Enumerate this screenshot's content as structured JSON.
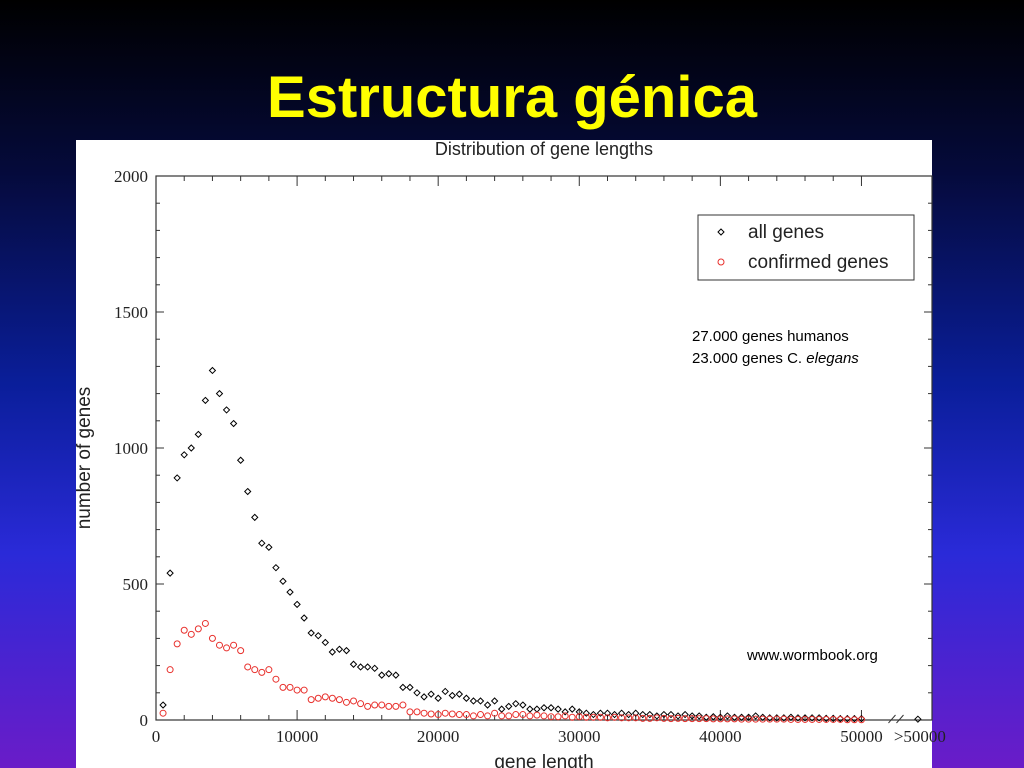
{
  "slide": {
    "title": "Estructura génica"
  },
  "annotations": {
    "line1": "27.000 genes humanos",
    "line2_prefix": "23.000 genes C. ",
    "line2_italic": "elegans",
    "source": "www.wormbook.org"
  },
  "chart_data": {
    "type": "scatter",
    "title": "Distribution of gene lengths",
    "xlabel": "gene length",
    "ylabel": "number of genes",
    "xlim": [
      0,
      55000
    ],
    "ylim": [
      0,
      2000
    ],
    "xticks": [
      0,
      10000,
      20000,
      30000,
      40000,
      50000
    ],
    "xtick_labels": [
      "0",
      "10000",
      "20000",
      "30000",
      "40000",
      "50000"
    ],
    "extra_xtick_label": ">50000",
    "yticks": [
      0,
      500,
      1000,
      1500,
      2000
    ],
    "ytick_labels": [
      "0",
      "500",
      "1000",
      "1500",
      "2000"
    ],
    "axis_break": true,
    "legend_position": "top-right",
    "series": [
      {
        "name": "all genes",
        "marker": "diamond",
        "color": "#000000",
        "points": [
          [
            500,
            55
          ],
          [
            1000,
            540
          ],
          [
            1500,
            890
          ],
          [
            2000,
            975
          ],
          [
            2500,
            1000
          ],
          [
            3000,
            1050
          ],
          [
            3500,
            1175
          ],
          [
            4000,
            1285
          ],
          [
            4500,
            1200
          ],
          [
            5000,
            1140
          ],
          [
            5500,
            1090
          ],
          [
            6000,
            955
          ],
          [
            6500,
            840
          ],
          [
            7000,
            745
          ],
          [
            7500,
            650
          ],
          [
            8000,
            635
          ],
          [
            8500,
            560
          ],
          [
            9000,
            510
          ],
          [
            9500,
            470
          ],
          [
            10000,
            425
          ],
          [
            10500,
            375
          ],
          [
            11000,
            320
          ],
          [
            11500,
            310
          ],
          [
            12000,
            285
          ],
          [
            12500,
            250
          ],
          [
            13000,
            260
          ],
          [
            13500,
            255
          ],
          [
            14000,
            205
          ],
          [
            14500,
            195
          ],
          [
            15000,
            195
          ],
          [
            15500,
            190
          ],
          [
            16000,
            165
          ],
          [
            16500,
            170
          ],
          [
            17000,
            165
          ],
          [
            17500,
            120
          ],
          [
            18000,
            120
          ],
          [
            18500,
            100
          ],
          [
            19000,
            85
          ],
          [
            19500,
            95
          ],
          [
            20000,
            80
          ],
          [
            20500,
            105
          ],
          [
            21000,
            90
          ],
          [
            21500,
            95
          ],
          [
            22000,
            80
          ],
          [
            22500,
            70
          ],
          [
            23000,
            70
          ],
          [
            23500,
            55
          ],
          [
            24000,
            70
          ],
          [
            24500,
            40
          ],
          [
            25000,
            50
          ],
          [
            25500,
            60
          ],
          [
            26000,
            55
          ],
          [
            26500,
            40
          ],
          [
            27000,
            40
          ],
          [
            27500,
            45
          ],
          [
            28000,
            45
          ],
          [
            28500,
            40
          ],
          [
            29000,
            30
          ],
          [
            29500,
            40
          ],
          [
            30000,
            30
          ],
          [
            30500,
            25
          ],
          [
            31000,
            20
          ],
          [
            31500,
            25
          ],
          [
            32000,
            25
          ],
          [
            32500,
            20
          ],
          [
            33000,
            25
          ],
          [
            33500,
            20
          ],
          [
            34000,
            25
          ],
          [
            34500,
            20
          ],
          [
            35000,
            20
          ],
          [
            35500,
            15
          ],
          [
            36000,
            20
          ],
          [
            36500,
            20
          ],
          [
            37000,
            15
          ],
          [
            37500,
            20
          ],
          [
            38000,
            15
          ],
          [
            38500,
            15
          ],
          [
            39000,
            10
          ],
          [
            39500,
            12
          ],
          [
            40000,
            10
          ],
          [
            40500,
            15
          ],
          [
            41000,
            10
          ],
          [
            41500,
            10
          ],
          [
            42000,
            10
          ],
          [
            42500,
            15
          ],
          [
            43000,
            10
          ],
          [
            43500,
            8
          ],
          [
            44000,
            8
          ],
          [
            44500,
            8
          ],
          [
            45000,
            10
          ],
          [
            45500,
            8
          ],
          [
            46000,
            8
          ],
          [
            46500,
            8
          ],
          [
            47000,
            8
          ],
          [
            47500,
            6
          ],
          [
            48000,
            6
          ],
          [
            48500,
            5
          ],
          [
            49000,
            5
          ],
          [
            49500,
            5
          ],
          [
            50000,
            5
          ],
          [
            54000,
            3
          ]
        ]
      },
      {
        "name": "confirmed genes",
        "marker": "circle",
        "color": "#e8302c",
        "points": [
          [
            500,
            25
          ],
          [
            1000,
            185
          ],
          [
            1500,
            280
          ],
          [
            2000,
            330
          ],
          [
            2500,
            315
          ],
          [
            3000,
            335
          ],
          [
            3500,
            355
          ],
          [
            4000,
            300
          ],
          [
            4500,
            275
          ],
          [
            5000,
            265
          ],
          [
            5500,
            275
          ],
          [
            6000,
            255
          ],
          [
            6500,
            195
          ],
          [
            7000,
            185
          ],
          [
            7500,
            175
          ],
          [
            8000,
            185
          ],
          [
            8500,
            150
          ],
          [
            9000,
            120
          ],
          [
            9500,
            120
          ],
          [
            10000,
            110
          ],
          [
            10500,
            110
          ],
          [
            11000,
            75
          ],
          [
            11500,
            80
          ],
          [
            12000,
            85
          ],
          [
            12500,
            80
          ],
          [
            13000,
            75
          ],
          [
            13500,
            65
          ],
          [
            14000,
            70
          ],
          [
            14500,
            60
          ],
          [
            15000,
            50
          ],
          [
            15500,
            55
          ],
          [
            16000,
            55
          ],
          [
            16500,
            50
          ],
          [
            17000,
            50
          ],
          [
            17500,
            55
          ],
          [
            18000,
            30
          ],
          [
            18500,
            30
          ],
          [
            19000,
            25
          ],
          [
            19500,
            22
          ],
          [
            20000,
            20
          ],
          [
            20500,
            25
          ],
          [
            21000,
            22
          ],
          [
            21500,
            20
          ],
          [
            22000,
            20
          ],
          [
            22500,
            15
          ],
          [
            23000,
            20
          ],
          [
            23500,
            15
          ],
          [
            24000,
            25
          ],
          [
            24500,
            15
          ],
          [
            25000,
            15
          ],
          [
            25500,
            20
          ],
          [
            26000,
            20
          ],
          [
            26500,
            15
          ],
          [
            27000,
            18
          ],
          [
            27500,
            15
          ],
          [
            28000,
            12
          ],
          [
            28500,
            12
          ],
          [
            29000,
            15
          ],
          [
            29500,
            10
          ],
          [
            30000,
            12
          ],
          [
            30500,
            10
          ],
          [
            31000,
            10
          ],
          [
            31500,
            10
          ],
          [
            32000,
            8
          ],
          [
            32500,
            10
          ],
          [
            33000,
            8
          ],
          [
            33500,
            8
          ],
          [
            34000,
            8
          ],
          [
            34500,
            6
          ],
          [
            35000,
            6
          ],
          [
            35500,
            8
          ],
          [
            36000,
            6
          ],
          [
            36500,
            5
          ],
          [
            37000,
            6
          ],
          [
            37500,
            5
          ],
          [
            38000,
            5
          ],
          [
            38500,
            5
          ],
          [
            39000,
            5
          ],
          [
            39500,
            4
          ],
          [
            40000,
            4
          ],
          [
            40500,
            4
          ],
          [
            41000,
            4
          ],
          [
            41500,
            3
          ],
          [
            42000,
            3
          ],
          [
            42500,
            3
          ],
          [
            43000,
            3
          ],
          [
            43500,
            3
          ],
          [
            44000,
            3
          ],
          [
            44500,
            3
          ],
          [
            45000,
            2
          ],
          [
            45500,
            2
          ],
          [
            46000,
            2
          ],
          [
            46500,
            2
          ],
          [
            47000,
            2
          ],
          [
            47500,
            2
          ],
          [
            48000,
            2
          ],
          [
            48500,
            2
          ],
          [
            49000,
            1
          ],
          [
            49500,
            1
          ],
          [
            50000,
            1
          ]
        ]
      }
    ]
  }
}
